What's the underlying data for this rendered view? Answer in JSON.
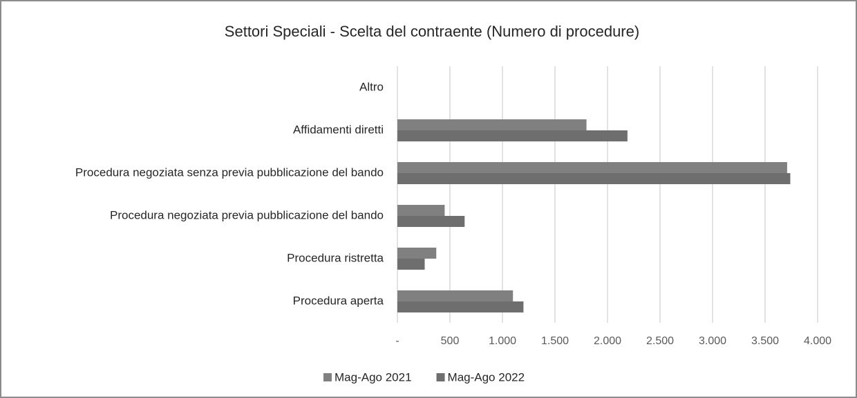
{
  "chart_data": {
    "type": "hbar",
    "title": "Settori Speciali - Scelta del contraente (Numero di procedure)",
    "categories": [
      "Altro",
      "Affidamenti diretti",
      "Procedura negoziata senza previa pubblicazione del bando",
      "Procedura negoziata previa pubblicazione del bando",
      "Procedura ristretta",
      "Procedura aperta"
    ],
    "series": [
      {
        "name": "Mag-Ago 2021",
        "color": "#808080",
        "values": [
          0,
          1800,
          3710,
          450,
          370,
          1100
        ]
      },
      {
        "name": "Mag-Ago 2022",
        "color": "#6e6e6e",
        "values": [
          0,
          2190,
          3740,
          640,
          260,
          1200
        ]
      }
    ],
    "xlim": [
      0,
      4000
    ],
    "xticks": [
      {
        "value": 0,
        "label": "-"
      },
      500,
      {
        "value": 1000,
        "label": "1.000"
      },
      {
        "value": 1500,
        "label": "1.500"
      },
      {
        "value": 2000,
        "label": "2.000"
      },
      {
        "value": 2500,
        "label": "2.500"
      },
      {
        "value": 3000,
        "label": "3.000"
      },
      {
        "value": 3500,
        "label": "3.500"
      },
      {
        "value": 4000,
        "label": "4.000"
      }
    ],
    "grid": true,
    "legend": "bottom"
  }
}
